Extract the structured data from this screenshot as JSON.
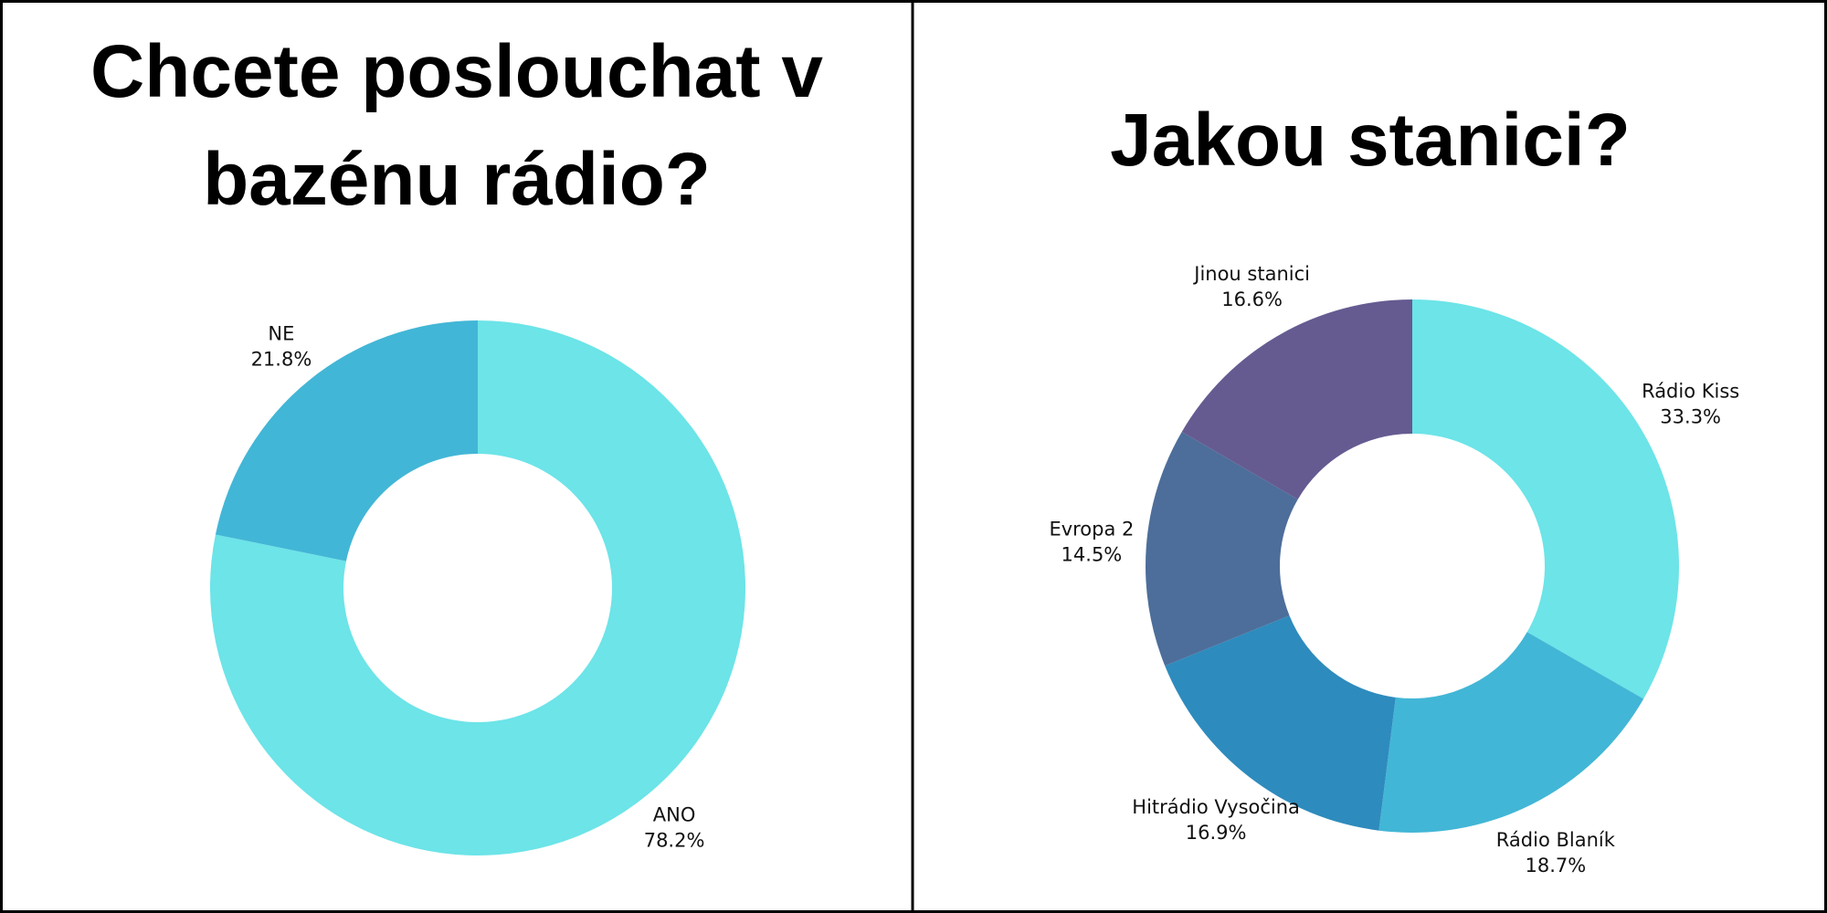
{
  "chart_data": [
    {
      "type": "donut",
      "title": "Chcete poslouchat v bazénu rádio?",
      "categories": [
        "ANO",
        "NE"
      ],
      "values": [
        78.2,
        21.8
      ],
      "value_labels": [
        "78.2%",
        "21.8%"
      ],
      "colors": [
        "#6ce4e8",
        "#42b6d6"
      ]
    },
    {
      "type": "donut",
      "title": "Jakou stanici?",
      "categories": [
        "Rádio Kiss",
        "Rádio Blaník",
        "Hitrádio Vysočina",
        "Evropa 2",
        "Jinou stanici"
      ],
      "values": [
        33.3,
        18.7,
        16.9,
        14.5,
        16.6
      ],
      "value_labels": [
        "33.3%",
        "18.7%",
        "16.9%",
        "14.5%",
        "16.6%"
      ],
      "colors": [
        "#6ce4e8",
        "#42b6d6",
        "#2e8bbd",
        "#4d6e9a",
        "#655b91"
      ]
    }
  ]
}
